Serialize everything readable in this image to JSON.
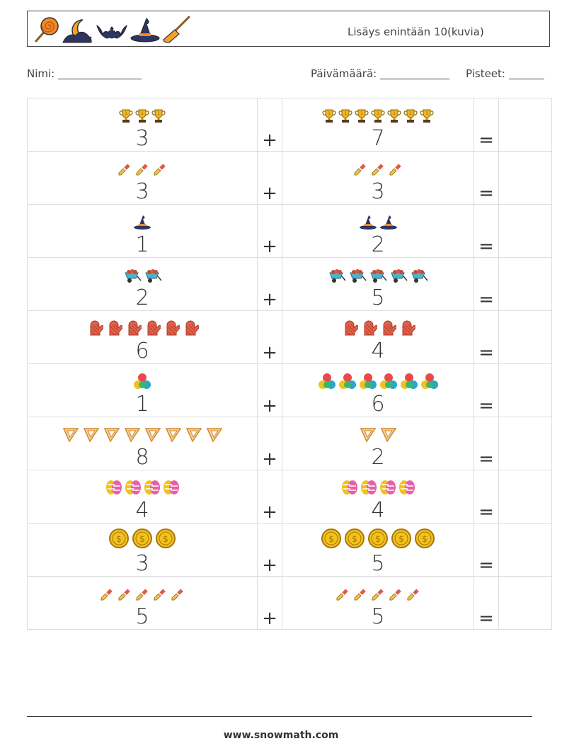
{
  "header": {
    "title": "Lisäys enintään 10(kuvia)",
    "icons": [
      "lollipop-icon",
      "moon-icon",
      "bat-icon",
      "witch-hat-icon",
      "broom-icon"
    ]
  },
  "form": {
    "name_label": "Nimi:",
    "date_label": "Päivämäärä:",
    "score_label": "Pisteet:"
  },
  "operators": {
    "plus": "+",
    "equals": "="
  },
  "problems": [
    {
      "a": "3",
      "b": "7",
      "icon": "trophy-icon"
    },
    {
      "a": "3",
      "b": "3",
      "icon": "pipette-icon"
    },
    {
      "a": "1",
      "b": "2",
      "icon": "witch-hat-icon"
    },
    {
      "a": "2",
      "b": "5",
      "icon": "wheelbarrow-icon"
    },
    {
      "a": "6",
      "b": "4",
      "icon": "oven-mitt-icon"
    },
    {
      "a": "1",
      "b": "6",
      "icon": "billiard-balls-icon"
    },
    {
      "a": "8",
      "b": "2",
      "icon": "set-square-icon"
    },
    {
      "a": "4",
      "b": "4",
      "icon": "easter-eggs-icon"
    },
    {
      "a": "3",
      "b": "5",
      "icon": "coin-icon"
    },
    {
      "a": "5",
      "b": "5",
      "icon": "pipette-icon"
    }
  ],
  "footer": {
    "url": "www.snowmath.com"
  },
  "colors": {
    "border": "#dddddd",
    "text": "#333333",
    "header_border": "#444444"
  }
}
